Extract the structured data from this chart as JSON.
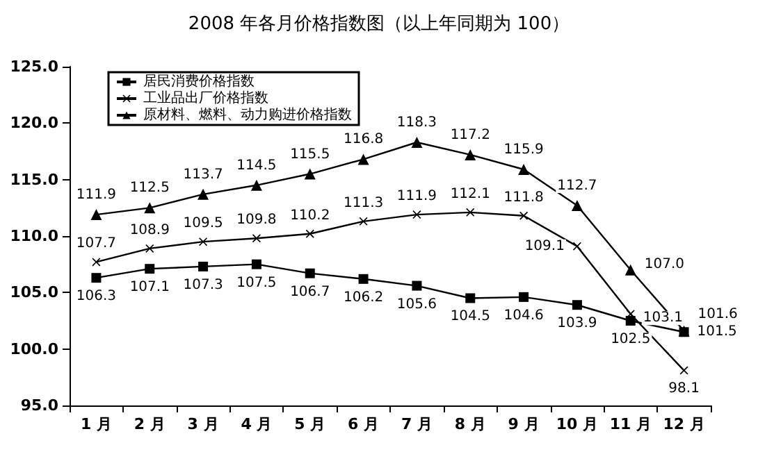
{
  "chart_data": {
    "type": "line",
    "title": "2008 年各月价格指数图（以上年同期为 100）",
    "categories": [
      "1 月",
      "2 月",
      "3 月",
      "4 月",
      "5 月",
      "6 月",
      "7 月",
      "8 月",
      "9 月",
      "10 月",
      "11 月",
      "12 月"
    ],
    "series": [
      {
        "name": "居民消费价格指数",
        "color": "#000000",
        "marker": "square",
        "values": [
          106.3,
          107.1,
          107.3,
          107.5,
          106.7,
          106.2,
          105.6,
          104.5,
          104.6,
          103.9,
          102.5,
          101.5
        ],
        "value_labels": [
          "106.3",
          "107.1",
          "107.3",
          "107.5",
          "106.7",
          "106.2",
          "105.6",
          "104.5",
          "104.6",
          "103.9",
          "102.5",
          "101.5"
        ]
      },
      {
        "name": "工业品出厂价格指数",
        "color": "#000000",
        "marker": "cross",
        "values": [
          107.7,
          108.9,
          109.5,
          109.8,
          110.2,
          111.3,
          111.9,
          112.1,
          111.8,
          109.1,
          103.1,
          98.1
        ],
        "value_labels": [
          "107.7",
          "108.9",
          "109.5",
          "109.8",
          "110.2",
          "111.3",
          "111.9",
          "112.1",
          "111.8",
          "109.1",
          "103.1",
          "98.1"
        ]
      },
      {
        "name": "原材料、燃料、动力购进价格指数",
        "color": "#000000",
        "marker": "triangle",
        "values": [
          111.9,
          112.5,
          113.7,
          114.5,
          115.5,
          116.8,
          118.3,
          117.2,
          115.9,
          112.7,
          107.0,
          101.6
        ],
        "value_labels": [
          "111.9",
          "112.5",
          "113.7",
          "114.5",
          "115.5",
          "116.8",
          "118.3",
          "117.2",
          "115.9",
          "112.7",
          "107.0",
          "101.6"
        ]
      }
    ],
    "ylim": [
      95,
      125
    ],
    "yticks": [
      {
        "value": 95,
        "label": "95.0"
      },
      {
        "value": 100,
        "label": "100.0"
      },
      {
        "value": 105,
        "label": "105.0"
      },
      {
        "value": 110,
        "label": "110.0"
      },
      {
        "value": 115,
        "label": "115.0"
      },
      {
        "value": 120,
        "label": "120.0"
      },
      {
        "value": 125,
        "label": "125.0"
      }
    ],
    "grid": false,
    "legend": "top left"
  }
}
